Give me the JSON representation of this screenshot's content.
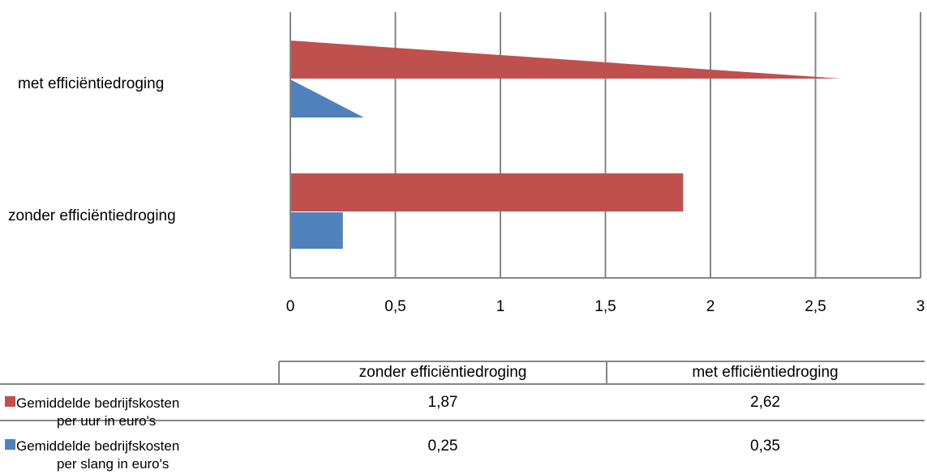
{
  "chart_data": {
    "type": "bar",
    "orientation": "horizontal",
    "categories": [
      "zonder efficiëntiedroging",
      "met efficiëntiedroging"
    ],
    "series": [
      {
        "name_line1": "Gemiddelde bedrijfskosten",
        "name_line2": "per uur in euro's",
        "color": "#c0504d",
        "values": [
          1.87,
          2.62
        ]
      },
      {
        "name_line1": "Gemiddelde bedrijfskosten",
        "name_line2": "per slang in euro's",
        "color": "#4f81bd",
        "values": [
          0.25,
          0.35
        ]
      }
    ],
    "value_labels": [
      [
        "1,87",
        "2,62"
      ],
      [
        "0,25",
        "0,35"
      ]
    ],
    "xlim": [
      0,
      3
    ],
    "ticks": [
      0,
      0.5,
      1,
      1.5,
      2,
      2.5,
      3
    ],
    "tick_labels": [
      "0",
      "0,5",
      "1",
      "1,5",
      "2",
      "2,5",
      "3"
    ],
    "grid": true,
    "data_table": true
  }
}
